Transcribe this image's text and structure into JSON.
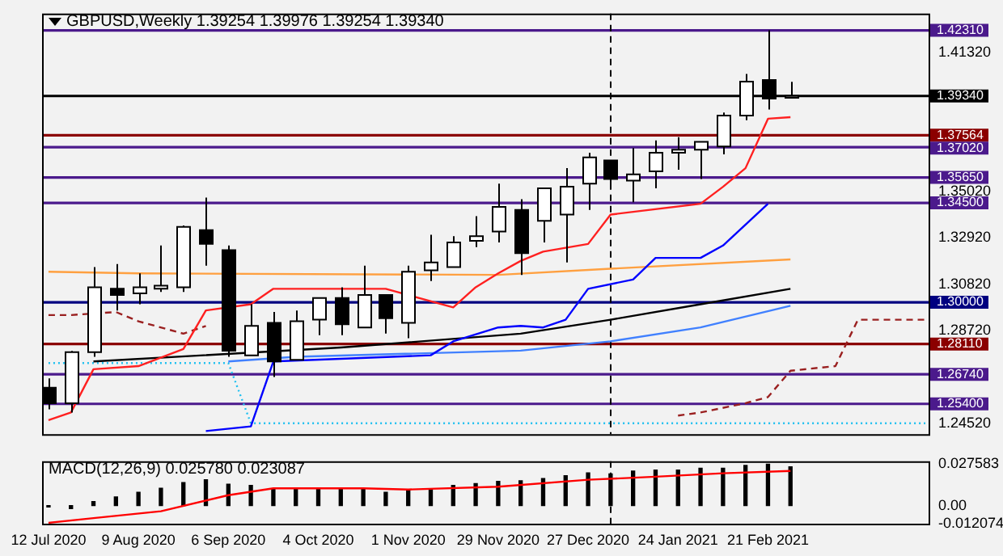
{
  "chart_data": [
    {
      "type": "candlestick",
      "title": "GBPUSD,Weekly  1.39254 1.39976 1.39254 1.39340",
      "x": [
        "2020-07-12",
        "2020-07-19",
        "2020-07-26",
        "2020-08-02",
        "2020-08-09",
        "2020-08-16",
        "2020-08-23",
        "2020-08-30",
        "2020-09-06",
        "2020-09-13",
        "2020-09-20",
        "2020-09-27",
        "2020-10-04",
        "2020-10-11",
        "2020-10-18",
        "2020-10-25",
        "2020-11-01",
        "2020-11-08",
        "2020-11-15",
        "2020-11-22",
        "2020-11-29",
        "2020-12-06",
        "2020-12-13",
        "2020-12-20",
        "2020-12-27",
        "2021-01-03",
        "2021-01-10",
        "2021-01-17",
        "2021-01-24",
        "2021-01-31",
        "2021-02-07",
        "2021-02-14",
        "2021-02-21",
        "2021-02-28"
      ],
      "ohlc": [
        [
          1.2613,
          1.2655,
          1.2515,
          1.2543
        ],
        [
          1.2543,
          1.278,
          1.2501,
          1.2774
        ],
        [
          1.2774,
          1.3159,
          1.2753,
          1.3068
        ],
        [
          1.3061,
          1.3173,
          1.2963,
          1.3033
        ],
        [
          1.304,
          1.3131,
          1.2991,
          1.3068
        ],
        [
          1.3061,
          1.3257,
          1.3047,
          1.3075
        ],
        [
          1.3068,
          1.3348,
          1.3047,
          1.3341
        ],
        [
          1.3327,
          1.3474,
          1.3166,
          1.3264
        ],
        [
          1.3236,
          1.3257,
          1.2753,
          1.2781
        ],
        [
          1.276,
          1.2991,
          1.276,
          1.2893
        ],
        [
          1.2907,
          1.2956,
          1.2662,
          1.2732
        ],
        [
          1.2739,
          1.2963,
          1.2739,
          1.2914
        ],
        [
          1.2921,
          1.3019,
          1.2851,
          1.3019
        ],
        [
          1.3019,
          1.3068,
          1.2851,
          1.29
        ],
        [
          1.2886,
          1.3166,
          1.2886,
          1.3033
        ],
        [
          1.3033,
          1.3033,
          1.2858,
          1.2928
        ],
        [
          1.2907,
          1.3166,
          1.2837,
          1.3138
        ],
        [
          1.3145,
          1.3306,
          1.3096,
          1.318
        ],
        [
          1.3159,
          1.3299,
          1.3159,
          1.3271
        ],
        [
          1.3278,
          1.339,
          1.325,
          1.3299
        ],
        [
          1.332,
          1.3537,
          1.3271,
          1.3432
        ],
        [
          1.3418,
          1.3467,
          1.3124,
          1.3222
        ],
        [
          1.3369,
          1.3516,
          1.3271,
          1.3516
        ],
        [
          1.3397,
          1.3607,
          1.318,
          1.3523
        ],
        [
          1.3537,
          1.3677,
          1.3418,
          1.3656
        ],
        [
          1.3642,
          1.3642,
          1.3537,
          1.3558
        ],
        [
          1.3551,
          1.3698,
          1.3453,
          1.3579
        ],
        [
          1.3593,
          1.3733,
          1.3516,
          1.3677
        ],
        [
          1.3677,
          1.3747,
          1.36,
          1.3691
        ],
        [
          1.3691,
          1.3726,
          1.3558,
          1.3726
        ],
        [
          1.3705,
          1.3859,
          1.367,
          1.3845
        ],
        [
          1.3845,
          1.4034,
          1.3824,
          1.3999
        ],
        [
          1.4006,
          1.4231,
          1.3873,
          1.3922
        ],
        [
          1.39254,
          1.39976,
          1.39254,
          1.3934
        ]
      ],
      "series": [
        {
          "type": "line",
          "color": "#ff2020",
          "x": [
            "2020-07-12",
            "2020-07-19",
            "2020-07-26",
            "2020-08-09",
            "2020-08-23",
            "2020-08-30",
            "2020-09-13",
            "2020-09-20",
            "2020-10-25",
            "2020-11-15",
            "2020-11-22",
            "2020-11-29",
            "2020-12-06",
            "2020-12-13",
            "2020-12-27",
            "2021-01-03",
            "2021-01-31",
            "2021-02-07",
            "2021-02-14",
            "2021-02-21",
            "2021-02-28"
          ],
          "values": [
            1.2466,
            1.2501,
            1.2697,
            1.2711,
            1.2788,
            1.2963,
            1.2991,
            1.3061,
            1.3061,
            1.2977,
            1.3068,
            1.3131,
            1.3187,
            1.3229,
            1.3264,
            1.3397,
            1.3446,
            1.3523,
            1.3607,
            1.3831,
            1.3838
          ]
        },
        {
          "type": "line",
          "color": "#0000ff",
          "x": [
            "2020-08-30",
            "2020-09-13",
            "2020-09-20",
            "2020-11-08",
            "2020-11-15",
            "2020-11-29",
            "2020-12-06",
            "2020-12-13",
            "2020-12-20",
            "2020-12-27",
            "2021-01-10",
            "2021-01-17",
            "2021-01-31",
            "2021-02-07",
            "2021-02-21"
          ],
          "values": [
            1.2417,
            1.2438,
            1.2732,
            1.276,
            1.2823,
            1.2886,
            1.2893,
            1.2886,
            1.2921,
            1.3061,
            1.3103,
            1.3201,
            1.3201,
            1.3257,
            1.3446
          ]
        },
        {
          "type": "line",
          "color": "#ffa040",
          "x": [
            "2020-07-12",
            "2020-08-09",
            "2020-11-29",
            "2021-01-03",
            "2021-02-28"
          ],
          "values": [
            1.3138,
            1.3131,
            1.3124,
            1.3152,
            1.3194
          ]
        },
        {
          "type": "line",
          "color": "#000000",
          "x": [
            "2020-07-26",
            "2020-10-11",
            "2020-12-06",
            "2021-01-03",
            "2021-01-31",
            "2021-02-28"
          ],
          "values": [
            1.2732,
            1.2795,
            1.2858,
            1.2921,
            1.2991,
            1.3061
          ]
        },
        {
          "type": "line",
          "color": "#4080ff",
          "x": [
            "2020-09-06",
            "2020-09-27",
            "2020-12-06",
            "2021-01-03",
            "2021-01-31",
            "2021-02-28"
          ],
          "values": [
            1.2732,
            1.2753,
            1.2781,
            1.2823,
            1.2886,
            1.2984
          ]
        },
        {
          "type": "line",
          "color": "#9a2020",
          "line_style": "dashed",
          "x": [
            "2020-07-12",
            "2020-07-19",
            "2020-08-02",
            "2020-08-09",
            "2020-08-23",
            "2020-08-30"
          ],
          "values": [
            1.2942,
            1.2942,
            1.2956,
            1.2914,
            1.2858,
            1.2893
          ]
        },
        {
          "type": "line",
          "color": "#9a2020",
          "line_style": "dashed",
          "x": [
            "2021-01-24",
            "2021-01-31",
            "2021-02-14",
            "2021-02-21",
            "2021-02-28",
            "2021-03-14",
            "2021-03-21",
            "2021-04-11"
          ],
          "values": [
            1.2487,
            1.2501,
            1.2543,
            1.2571,
            1.269,
            1.2711,
            1.2921,
            1.2921
          ]
        },
        {
          "type": "line",
          "color": "#20c0f0",
          "line_style": "dotted",
          "x": [
            "2020-07-12",
            "2020-09-06",
            "2020-09-13",
            "2021-04-11"
          ],
          "values": [
            1.2725,
            1.2725,
            1.2452,
            1.2452
          ]
        }
      ],
      "xlim": [
        "2020-07-10",
        "2021-04-12"
      ],
      "ylim": [
        1.2403,
        1.4307
      ],
      "yticks": [
        {
          "value": 1.4132,
          "label": "1.41320"
        },
        {
          "value": 1.3502,
          "label": "1.35020"
        },
        {
          "value": 1.3292,
          "label": "1.32920"
        },
        {
          "value": 1.3082,
          "label": "1.30820"
        },
        {
          "value": 1.2872,
          "label": "1.28720"
        },
        {
          "value": 1.2452,
          "label": "1.24520"
        }
      ],
      "tick_labels": "y",
      "ref_lines": [
        {
          "axis": "y",
          "value": 1.4231,
          "label": "1.42310",
          "color": "#4b1a8c"
        },
        {
          "axis": "y",
          "value": 1.3934,
          "label": "1.39340",
          "color": "#000000"
        },
        {
          "axis": "y",
          "value": 1.37564,
          "label": "1.37564",
          "color": "#8b0000"
        },
        {
          "axis": "y",
          "value": 1.3702,
          "label": "1.37020",
          "color": "#4b1a8c"
        },
        {
          "axis": "y",
          "value": 1.3565,
          "label": "1.35650",
          "color": "#4b1a8c"
        },
        {
          "axis": "y",
          "value": 1.345,
          "label": "1.34500",
          "color": "#4b1a8c"
        },
        {
          "axis": "y",
          "value": 1.3,
          "label": "1.30000",
          "color": "#000080"
        },
        {
          "axis": "y",
          "value": 1.2811,
          "label": "1.28110",
          "color": "#8b0000"
        },
        {
          "axis": "y",
          "value": 1.2674,
          "label": "1.26740",
          "color": "#4b1a8c"
        },
        {
          "axis": "y",
          "value": 1.254,
          "label": "1.25400",
          "color": "#4b1a8c"
        },
        {
          "axis": "x",
          "value": "2021-01-03",
          "color": "#000000",
          "line_style": "dashed"
        }
      ]
    },
    {
      "type": "bar",
      "title": "MACD(12,26,9) 0.025780 0.023087",
      "x": [
        "2020-07-12",
        "2020-07-19",
        "2020-07-26",
        "2020-08-02",
        "2020-08-09",
        "2020-08-16",
        "2020-08-23",
        "2020-08-30",
        "2020-09-06",
        "2020-09-13",
        "2020-09-20",
        "2020-09-27",
        "2020-10-04",
        "2020-10-11",
        "2020-10-18",
        "2020-10-25",
        "2020-11-01",
        "2020-11-08",
        "2020-11-15",
        "2020-11-22",
        "2020-11-29",
        "2020-12-06",
        "2020-12-13",
        "2020-12-20",
        "2020-12-27",
        "2021-01-03",
        "2021-01-10",
        "2021-01-17",
        "2021-01-24",
        "2021-01-31",
        "2021-02-07",
        "2021-02-14",
        "2021-02-21",
        "2021-02-28"
      ],
      "series": [
        {
          "type": "bar",
          "color": "#000000",
          "values": [
            -0.001,
            -0.002,
            0.0027,
            0.0057,
            0.0088,
            0.0115,
            0.0153,
            0.0172,
            0.0142,
            0.0134,
            0.0107,
            0.0115,
            0.0115,
            0.0107,
            0.0107,
            0.0088,
            0.0103,
            0.0107,
            0.0134,
            0.0146,
            0.0161,
            0.0165,
            0.018,
            0.0199,
            0.0218,
            0.0211,
            0.023,
            0.0237,
            0.0237,
            0.0249,
            0.0249,
            0.0268,
            0.0276,
            0.02578
          ]
        },
        {
          "type": "line",
          "color": "#ff0000",
          "x": [
            "2020-07-12",
            "2020-07-26",
            "2020-08-16",
            "2020-09-06",
            "2020-09-20",
            "2020-10-18",
            "2020-11-01",
            "2020-11-29",
            "2020-12-27",
            "2021-01-17",
            "2021-02-07",
            "2021-02-28"
          ],
          "values": [
            -0.0115,
            -0.0084,
            -0.0038,
            0.0069,
            0.0115,
            0.0115,
            0.0107,
            0.0126,
            0.0172,
            0.0192,
            0.0215,
            0.023087
          ]
        }
      ],
      "xlim": [
        "2020-07-10",
        "2021-04-12"
      ],
      "ylim": [
        -0.012074,
        0.0295
      ],
      "xticks": [
        {
          "value": "2020-07-12",
          "label": "12 Jul 2020"
        },
        {
          "value": "2020-08-09",
          "label": "9 Aug 2020"
        },
        {
          "value": "2020-09-06",
          "label": "6 Sep 2020"
        },
        {
          "value": "2020-10-04",
          "label": "4 Oct 2020"
        },
        {
          "value": "2020-11-01",
          "label": "1 Nov 2020"
        },
        {
          "value": "2020-11-29",
          "label": "29 Nov 2020"
        },
        {
          "value": "2020-12-27",
          "label": "27 Dec 2020"
        },
        {
          "value": "2021-01-24",
          "label": "24 Jan 2021"
        },
        {
          "value": "2021-02-21",
          "label": "21 Feb 2021"
        }
      ],
      "yticks": [
        {
          "value": 0.027583,
          "label": "0.027583"
        },
        {
          "value": 0,
          "label": "0.00"
        },
        {
          "value": -0.012074,
          "label": "-0.012074"
        }
      ],
      "ref_lines": [
        {
          "axis": "x",
          "value": "2021-01-03",
          "color": "#000000",
          "line_style": "dashed"
        }
      ]
    }
  ]
}
